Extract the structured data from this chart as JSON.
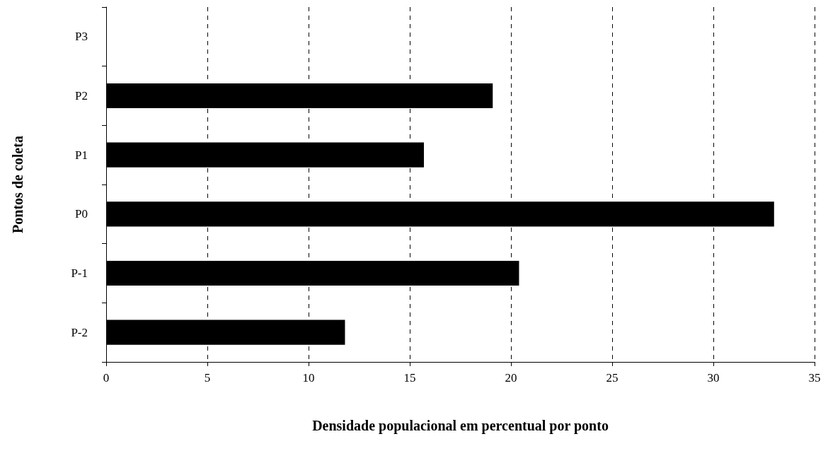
{
  "chart_data": {
    "type": "bar",
    "orientation": "horizontal",
    "xlabel": "Densidade populacional em percentual por ponto",
    "ylabel": "Pontos de coleta",
    "categories": [
      "P3",
      "P2",
      "P1",
      "P0",
      "P-1",
      "P-2"
    ],
    "values": [
      null,
      19.1,
      15.7,
      33.0,
      20.4,
      11.8
    ],
    "color": "#000000",
    "xlim": [
      0,
      35
    ],
    "xticks": [
      0,
      5,
      10,
      15,
      20,
      25,
      30,
      35
    ],
    "grid": "x"
  }
}
